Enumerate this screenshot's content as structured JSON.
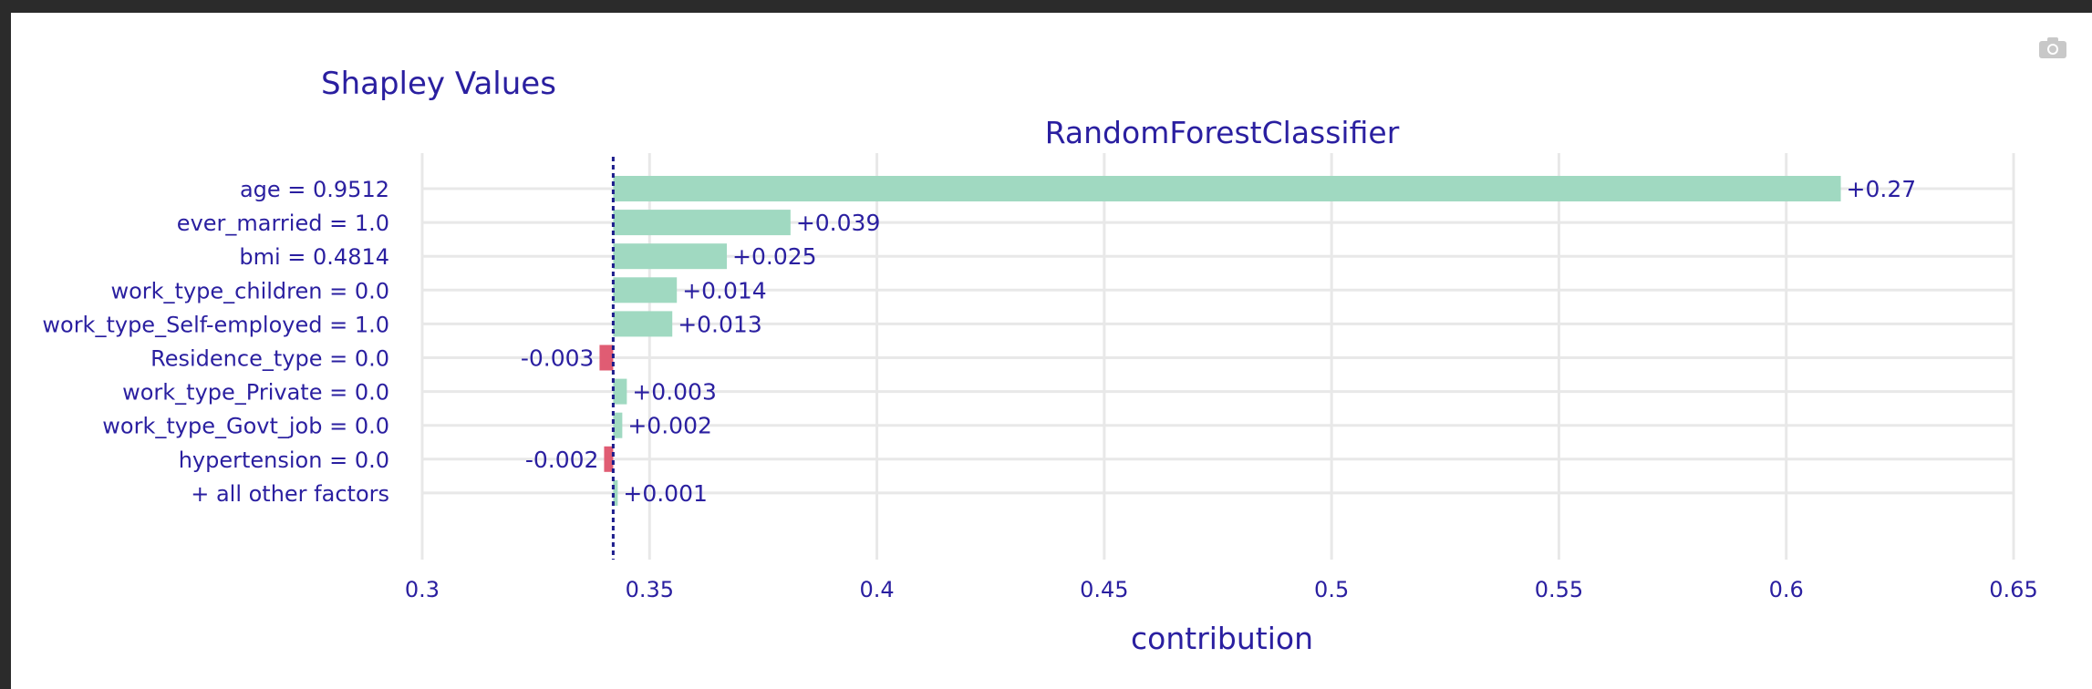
{
  "title": "Shapley Values",
  "colors": {
    "positive": "#a0d9c1",
    "negative": "#e05c73",
    "text": "#2a1fa0",
    "grid": "#e8e8e8",
    "baseline": "#1c1c8c"
  },
  "icons": {
    "camera": "camera-icon"
  },
  "chart_data": {
    "type": "bar",
    "orientation": "horizontal",
    "subtitle": "RandomForestClassifier",
    "xlabel": "contribution",
    "ylabel": "",
    "xlim": [
      0.3,
      0.65
    ],
    "xticks": [
      0.3,
      0.35,
      0.4,
      0.45,
      0.5,
      0.55,
      0.6,
      0.65
    ],
    "xtick_labels": [
      "0.3",
      "0.35",
      "0.4",
      "0.45",
      "0.5",
      "0.55",
      "0.6",
      "0.65"
    ],
    "base_value": 0.342,
    "grid": true,
    "categories": [
      "age = 0.9512",
      "ever_married = 1.0",
      "bmi = 0.4814",
      "work_type_children = 0.0",
      "work_type_Self-employed = 1.0",
      "Residence_type = 0.0",
      "work_type_Private = 0.0",
      "work_type_Govt_job = 0.0",
      "hypertension = 0.0",
      "+ all other factors"
    ],
    "values": [
      0.27,
      0.039,
      0.025,
      0.014,
      0.013,
      -0.003,
      0.003,
      0.002,
      -0.002,
      0.001
    ],
    "value_labels": [
      "+0.27",
      "+0.039",
      "+0.025",
      "+0.014",
      "+0.013",
      "-0.003",
      "+0.003",
      "+0.002",
      "-0.002",
      "+0.001"
    ]
  }
}
